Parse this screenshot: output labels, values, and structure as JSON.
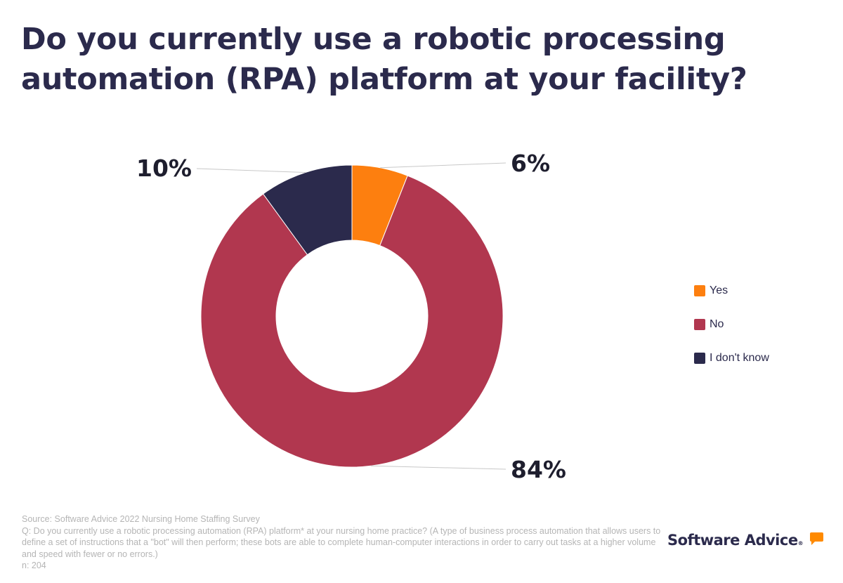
{
  "title": "Do you currently use a robotic processing automation (RPA) platform at your facility?",
  "chart_data": {
    "type": "pie",
    "donut": true,
    "categories": [
      "Yes",
      "No",
      "I don't know"
    ],
    "values": [
      6,
      84,
      10
    ],
    "labels": [
      "6%",
      "84%",
      "10%"
    ],
    "colors": [
      "#fd7f0f",
      "#b1374f",
      "#2b2a4c"
    ],
    "legend": "right"
  },
  "footnote": {
    "source": "Source: Software Advice 2022 Nursing Home Staffing Survey",
    "question": "Q: Do you currently use a robotic processing automation (RPA) platform* at your nursing home practice? (A type of business process automation that allows users to define a set of instructions that a \"bot\" will then perform; these bots are able to complete human-computer interactions in order to carry out tasks at a higher volume and speed with fewer or no errors.)",
    "n": "n: 204"
  },
  "logo": "Software Advice"
}
